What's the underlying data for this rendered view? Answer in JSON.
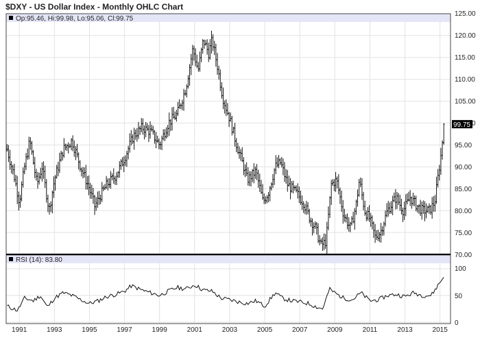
{
  "title": "$DXY - US Dollar Index - Monthly OHLC Chart",
  "price_panel": {
    "legend_text": "Op:95.46, Hi:99.98, Lo:95.06, Cl:99.75",
    "last_price_label": "99.75",
    "header_color": "#e4e6f8",
    "bar_color": "#111111",
    "y_ticks": [
      "125.00",
      "120.00",
      "115.00",
      "110.00",
      "105.00",
      "100.00",
      "95.00",
      "90.00",
      "85.00",
      "80.00",
      "75.00",
      "70.00"
    ]
  },
  "rsi_panel": {
    "legend_text": "RSI (14): 83.80",
    "y_ticks": [
      "100",
      "50",
      "0"
    ]
  },
  "x_ticks": [
    "1991",
    "1993",
    "1995",
    "1997",
    "1999",
    "2001",
    "2003",
    "2005",
    "2007",
    "2009",
    "2011",
    "2013",
    "2015"
  ],
  "chart_data": {
    "type": "ohlc",
    "title": "$DXY - US Dollar Index - Monthly OHLC Chart",
    "frequency": "monthly",
    "x_range": [
      1990.25,
      2015.6
    ],
    "ylim": [
      70,
      125
    ],
    "grid": true,
    "last": {
      "open": 95.46,
      "high": 99.98,
      "low": 95.06,
      "close": 99.75
    },
    "close_anchors": [
      [
        1990.3,
        94
      ],
      [
        1990.7,
        88
      ],
      [
        1991.0,
        82
      ],
      [
        1991.3,
        90
      ],
      [
        1991.6,
        96
      ],
      [
        1992.0,
        86
      ],
      [
        1992.3,
        90
      ],
      [
        1992.7,
        80
      ],
      [
        1993.0,
        87
      ],
      [
        1993.5,
        94
      ],
      [
        1994.0,
        96
      ],
      [
        1994.5,
        90
      ],
      [
        1995.0,
        85
      ],
      [
        1995.3,
        81
      ],
      [
        1995.7,
        84
      ],
      [
        1996.0,
        86
      ],
      [
        1996.5,
        88
      ],
      [
        1997.0,
        92
      ],
      [
        1997.5,
        97
      ],
      [
        1998.0,
        99
      ],
      [
        1998.5,
        98
      ],
      [
        1999.0,
        95
      ],
      [
        1999.5,
        100
      ],
      [
        2000.0,
        102
      ],
      [
        2000.5,
        108
      ],
      [
        2000.9,
        117
      ],
      [
        2001.2,
        112
      ],
      [
        2001.5,
        119
      ],
      [
        2001.8,
        116
      ],
      [
        2002.0,
        119
      ],
      [
        2002.3,
        113
      ],
      [
        2002.6,
        106
      ],
      [
        2003.0,
        101
      ],
      [
        2003.4,
        95
      ],
      [
        2003.8,
        90
      ],
      [
        2004.0,
        87
      ],
      [
        2004.5,
        89
      ],
      [
        2004.9,
        82
      ],
      [
        2005.2,
        84
      ],
      [
        2005.6,
        90
      ],
      [
        2005.9,
        91
      ],
      [
        2006.3,
        86
      ],
      [
        2006.8,
        84
      ],
      [
        2007.2,
        82
      ],
      [
        2007.6,
        78
      ],
      [
        2007.9,
        76
      ],
      [
        2008.2,
        72
      ],
      [
        2008.5,
        73
      ],
      [
        2008.8,
        86
      ],
      [
        2009.1,
        87
      ],
      [
        2009.5,
        79
      ],
      [
        2009.9,
        76
      ],
      [
        2010.2,
        81
      ],
      [
        2010.4,
        87
      ],
      [
        2010.7,
        80
      ],
      [
        2011.0,
        78
      ],
      [
        2011.3,
        74
      ],
      [
        2011.6,
        75
      ],
      [
        2012.0,
        80
      ],
      [
        2012.5,
        83
      ],
      [
        2012.9,
        80
      ],
      [
        2013.3,
        83
      ],
      [
        2013.7,
        81
      ],
      [
        2014.0,
        80
      ],
      [
        2014.4,
        80
      ],
      [
        2014.7,
        82
      ],
      [
        2014.9,
        88
      ],
      [
        2015.1,
        94
      ],
      [
        2015.2,
        99.75
      ]
    ],
    "rsi": {
      "name": "RSI (14)",
      "last": 83.8,
      "ylim": [
        0,
        100
      ],
      "anchors": [
        [
          1990.3,
          30
        ],
        [
          1990.9,
          22
        ],
        [
          1991.3,
          45
        ],
        [
          1991.8,
          40
        ],
        [
          1992.2,
          50
        ],
        [
          1992.6,
          28
        ],
        [
          1993.0,
          45
        ],
        [
          1993.5,
          55
        ],
        [
          1994.0,
          50
        ],
        [
          1994.5,
          42
        ],
        [
          1995.0,
          35
        ],
        [
          1995.5,
          40
        ],
        [
          1996.0,
          48
        ],
        [
          1996.5,
          52
        ],
        [
          1997.0,
          58
        ],
        [
          1997.4,
          68
        ],
        [
          1998.0,
          60
        ],
        [
          1998.5,
          55
        ],
        [
          1999.0,
          50
        ],
        [
          1999.5,
          58
        ],
        [
          2000.0,
          65
        ],
        [
          2000.5,
          62
        ],
        [
          2001.0,
          70
        ],
        [
          2001.5,
          60
        ],
        [
          2002.0,
          58
        ],
        [
          2002.5,
          45
        ],
        [
          2003.0,
          42
        ],
        [
          2003.5,
          38
        ],
        [
          2004.0,
          35
        ],
        [
          2004.5,
          40
        ],
        [
          2005.0,
          30
        ],
        [
          2005.6,
          55
        ],
        [
          2006.0,
          45
        ],
        [
          2006.5,
          40
        ],
        [
          2007.0,
          38
        ],
        [
          2007.5,
          35
        ],
        [
          2008.0,
          28
        ],
        [
          2008.3,
          25
        ],
        [
          2008.7,
          62
        ],
        [
          2009.0,
          55
        ],
        [
          2009.5,
          45
        ],
        [
          2010.0,
          42
        ],
        [
          2010.5,
          55
        ],
        [
          2011.0,
          40
        ],
        [
          2011.5,
          42
        ],
        [
          2012.0,
          50
        ],
        [
          2012.5,
          52
        ],
        [
          2013.0,
          48
        ],
        [
          2013.5,
          55
        ],
        [
          2014.0,
          50
        ],
        [
          2014.5,
          50
        ],
        [
          2014.9,
          70
        ],
        [
          2015.2,
          83.8
        ]
      ]
    }
  }
}
